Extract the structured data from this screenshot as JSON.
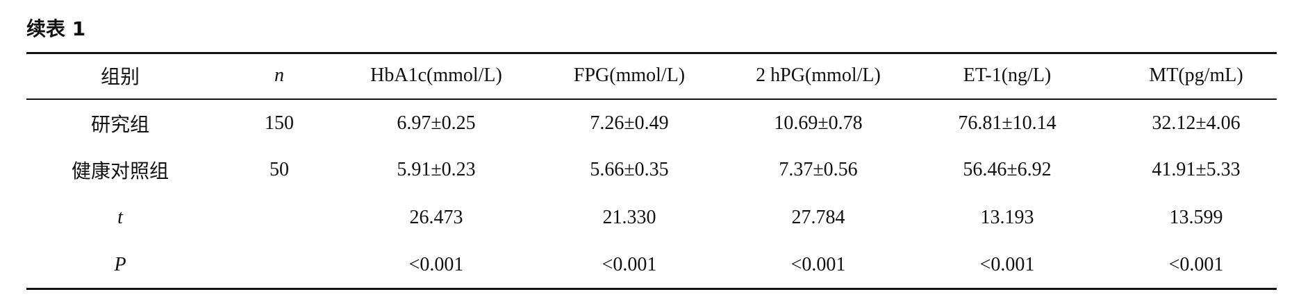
{
  "title": "续表 1",
  "table": {
    "header": [
      "组别",
      "n",
      "HbA1c(mmol/L)",
      "FPG(mmol/L)",
      "2 hPG(mmol/L)",
      "ET-1(ng/L)",
      "MT(pg/mL)"
    ],
    "rows": [
      {
        "group": "研究组",
        "n": "150",
        "values": [
          "6.97±0.25",
          "7.26±0.49",
          "10.69±0.78",
          "76.81±10.14",
          "32.12±4.06"
        ]
      },
      {
        "group": "健康对照组",
        "n": "50",
        "values": [
          "5.91±0.23",
          "5.66±0.35",
          "7.37±0.56",
          "56.46±6.92",
          "41.91±5.33"
        ]
      },
      {
        "group": "t",
        "values": [
          "26.473",
          "21.330",
          "27.784",
          "13.193",
          "13.599"
        ]
      },
      {
        "group": "P",
        "values": [
          "<0.001",
          "<0.001",
          "<0.001",
          "<0.001",
          "<0.001"
        ]
      }
    ]
  }
}
